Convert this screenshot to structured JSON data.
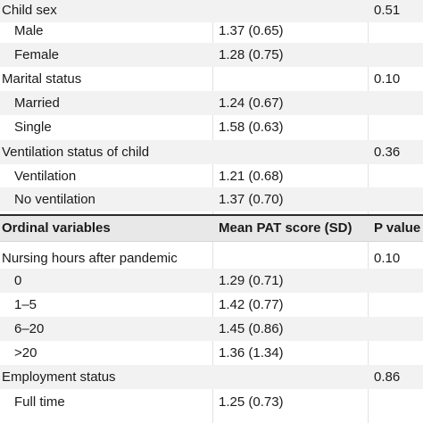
{
  "rows": [
    {
      "type": "group",
      "label": "Child sex",
      "mean": "",
      "p": "0.51"
    },
    {
      "type": "item",
      "label": "Male",
      "mean": "1.37 (0.65)",
      "p": ""
    },
    {
      "type": "item",
      "label": "Female",
      "mean": "1.28 (0.75)",
      "p": ""
    },
    {
      "type": "group",
      "label": "Marital status",
      "mean": "",
      "p": "0.10"
    },
    {
      "type": "item",
      "label": "Married",
      "mean": "1.24 (0.67)",
      "p": ""
    },
    {
      "type": "item",
      "label": "Single",
      "mean": "1.58 (0.63)",
      "p": ""
    },
    {
      "type": "group",
      "label": "Ventilation status of child",
      "mean": "",
      "p": "0.36"
    },
    {
      "type": "item",
      "label": "Ventilation",
      "mean": "1.21 (0.68)",
      "p": ""
    },
    {
      "type": "item",
      "label": "No ventilation",
      "mean": "1.37 (0.70)",
      "p": ""
    },
    {
      "type": "header",
      "label": "Ordinal variables",
      "mean": "Mean PAT score (SD)",
      "p": "P value"
    },
    {
      "type": "group",
      "label": "Nursing hours after pandemic",
      "mean": "",
      "p": "0.10"
    },
    {
      "type": "item",
      "label": "0",
      "mean": "1.29 (0.71)",
      "p": ""
    },
    {
      "type": "item",
      "label": "1–5",
      "mean": "1.42 (0.77)",
      "p": ""
    },
    {
      "type": "item",
      "label": "6–20",
      "mean": "1.45 (0.86)",
      "p": ""
    },
    {
      "type": "item",
      "label": ">20",
      "mean": "1.36 (1.34)",
      "p": ""
    },
    {
      "type": "group",
      "label": "Employment status",
      "mean": "",
      "p": "0.86"
    },
    {
      "type": "item",
      "label": "Full time",
      "mean": "1.25 (0.73)",
      "p": ""
    }
  ]
}
